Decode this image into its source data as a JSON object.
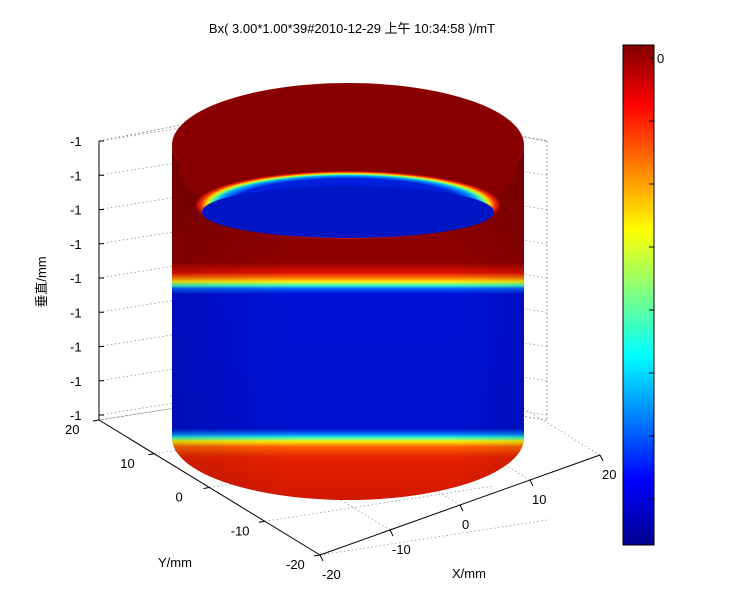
{
  "chart_data": {
    "type": "surface3d",
    "title": "Bx( 3.00*1.00*39#2010-12-29 上午 10:34:58 )/mT",
    "xlabel": "X/mm",
    "ylabel": "Y/mm",
    "zlabel": "垂直/mm",
    "x_ticks": [
      "-20",
      "-10",
      "0",
      "10",
      "20"
    ],
    "y_ticks": [
      "-20",
      "-10",
      "0",
      "10",
      "20"
    ],
    "z_ticks": [
      "-1",
      "-1",
      "-1",
      "-1",
      "-1",
      "-1",
      "-1",
      "-1",
      "-1"
    ],
    "colorbar_ticks": [
      "0",
      "",
      "",
      "",
      "",
      "",
      "",
      ""
    ],
    "colormap": "jet",
    "grid": true,
    "surface": {
      "shape": "cylinder",
      "radius_mm": 20,
      "bands": [
        {
          "from": 0.0,
          "to": 0.38,
          "value": "high"
        },
        {
          "from": 0.38,
          "to": 0.84,
          "value": "low"
        },
        {
          "from": 0.84,
          "to": 1.0,
          "value": "high"
        }
      ]
    }
  }
}
